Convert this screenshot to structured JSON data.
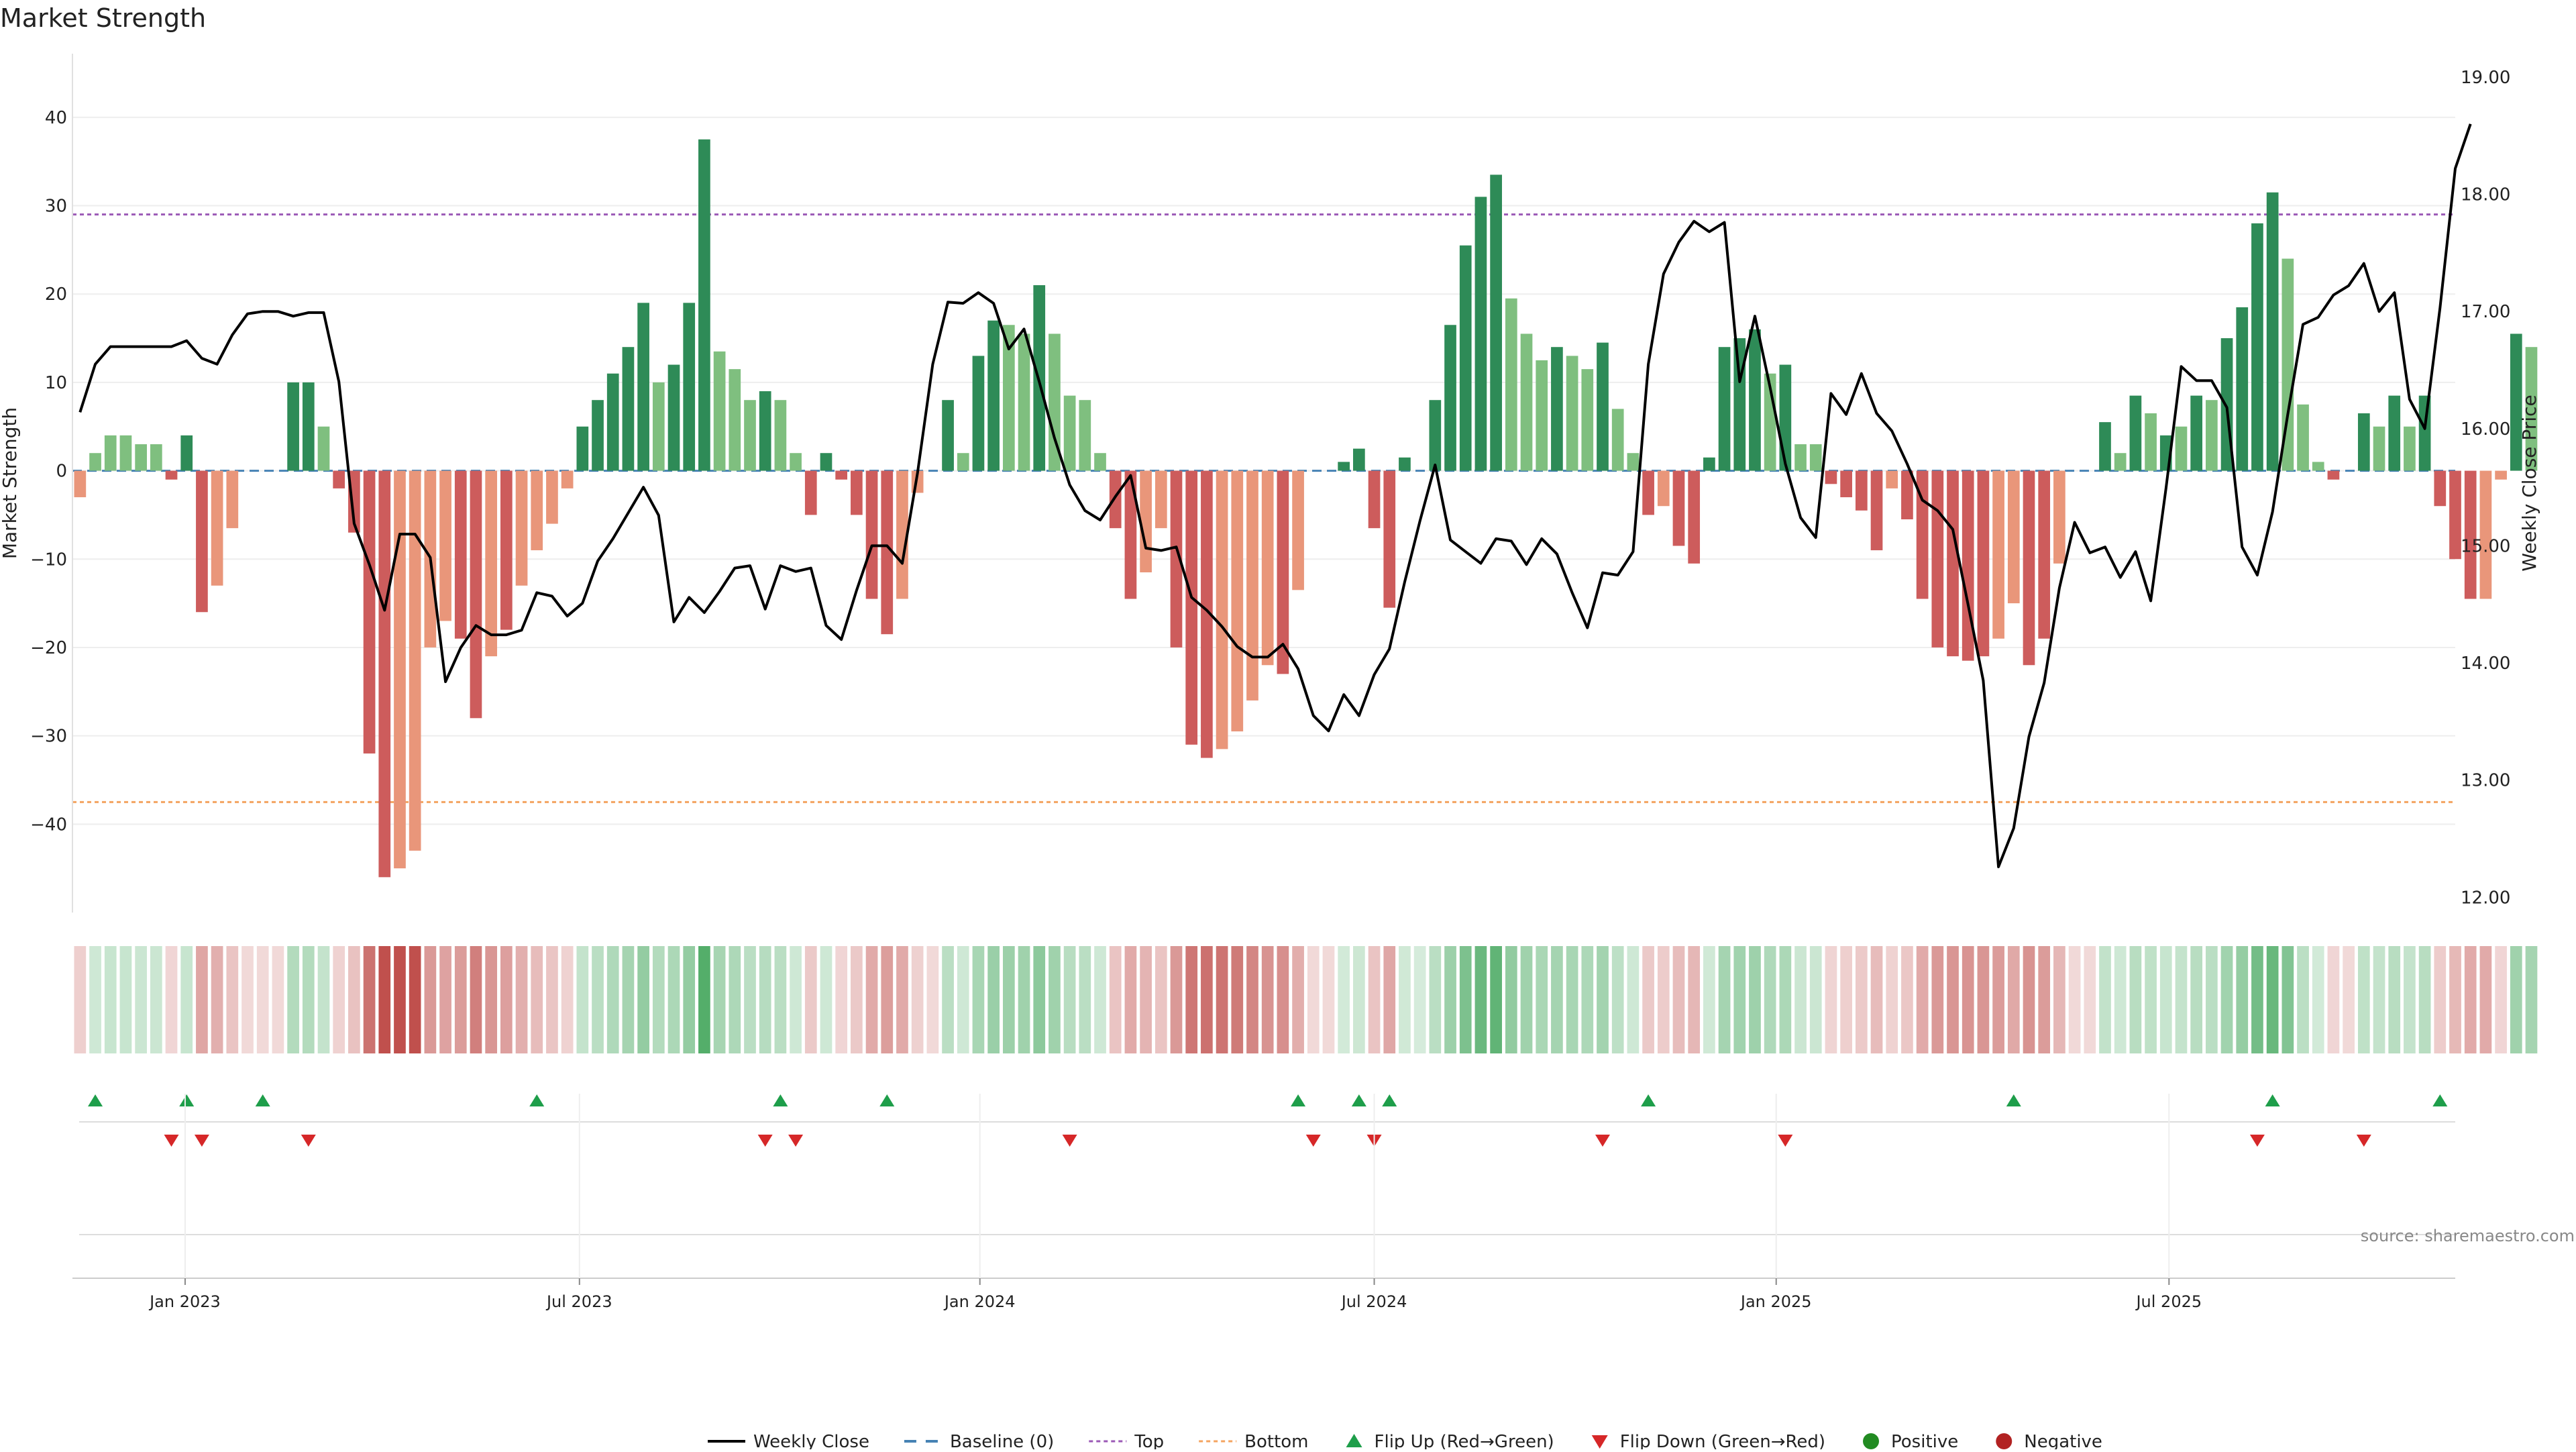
{
  "chart_data": {
    "type": "bar",
    "title": "Market Strength",
    "ylabel": "Market Strength",
    "y2label": "Weekly Close Price",
    "source": "source: sharemaestro.com",
    "ylim": [
      -50,
      47.2
    ],
    "y2lim": [
      11.87,
      19.2
    ],
    "yticks": [
      40,
      30,
      20,
      10,
      0,
      -10,
      -20,
      -30,
      -40
    ],
    "ytick_labels": [
      "40",
      "30",
      "20",
      "10",
      "0",
      "−10",
      "−20",
      "−30",
      "−40"
    ],
    "y2ticks": [
      19.0,
      18.0,
      17.0,
      16.0,
      15.0,
      14.0,
      13.0,
      12.0
    ],
    "y2tick_labels": [
      "19.00",
      "18.00",
      "17.00",
      "16.00",
      "15.00",
      "14.00",
      "13.00",
      "12.00"
    ],
    "x_range": [
      0,
      156.5
    ],
    "xticks": [
      {
        "idx": 7.4,
        "label": "Jan 2023"
      },
      {
        "idx": 33.3,
        "label": "Jul 2023"
      },
      {
        "idx": 59.6,
        "label": "Jan 2024"
      },
      {
        "idx": 85.5,
        "label": "Jul 2024"
      },
      {
        "idx": 111.9,
        "label": "Jan 2025"
      },
      {
        "idx": 137.7,
        "label": "Jul 2025"
      }
    ],
    "top_line": 29,
    "bottom_line": -37.5,
    "baseline": 0,
    "colors": {
      "strong_pos": "#2e8b57",
      "weak_pos": "#7fbf7f",
      "strong_neg": "#cd5c5c",
      "weak_neg": "#e9967a",
      "price": "#000000",
      "top": "#9b59b6",
      "bottom": "#f4a460",
      "baseline": "#4682b4",
      "flip_up": "#1e9e4a",
      "flip_down": "#d62728",
      "positive": "#228b22",
      "negative": "#b22222"
    },
    "strength": [
      -3,
      2,
      4,
      4,
      3,
      3,
      -1,
      4,
      -16,
      -13,
      -6.5,
      0,
      0,
      0,
      10,
      10,
      5,
      -2,
      -7,
      -32,
      -46,
      -45,
      -43,
      -20,
      -17,
      -19,
      -28,
      -21,
      -18,
      -13,
      -9,
      -6,
      -2,
      5,
      8,
      11,
      14,
      19,
      10,
      12,
      19,
      37.5,
      13.5,
      11.5,
      8,
      9,
      8,
      2,
      -5,
      2,
      -1,
      -5,
      -14.5,
      -18.5,
      -14.5,
      -2.5,
      0,
      8,
      2,
      13,
      17,
      16.5,
      15.5,
      21,
      15.5,
      8.5,
      8,
      2,
      -6.5,
      -14.5,
      -11.5,
      -6.5,
      -20,
      -31,
      -32.5,
      -31.5,
      -29.5,
      -26,
      -22,
      -23,
      -13.5,
      0,
      0,
      1,
      2.5,
      -6.5,
      -15.5,
      1.5,
      0,
      8,
      16.5,
      25.5,
      31,
      33.5,
      19.5,
      15.5,
      12.5,
      14,
      13,
      11.5,
      14.5,
      7,
      2,
      -5,
      -4,
      -8.5,
      -10.5,
      1.5,
      14,
      15,
      16,
      11,
      12,
      3,
      3,
      -1.5,
      -3,
      -4.5,
      -9,
      -2,
      -5.5,
      -14.5,
      -20,
      -21,
      -21.5,
      -21,
      -19,
      -15,
      -22,
      -19,
      -10.5,
      0,
      0,
      5.5,
      2,
      8.5,
      6.5,
      4,
      5,
      8.5,
      8,
      15,
      18.5,
      28,
      31.5,
      24,
      7.5,
      1,
      -1,
      0,
      6.5,
      5,
      8.5,
      5,
      8.5,
      -4,
      -10,
      -14.5,
      -14.5,
      -1,
      15.5,
      14
    ],
    "price": [
      16.14,
      16.55,
      16.7,
      16.7,
      16.7,
      16.7,
      16.7,
      16.75,
      16.6,
      16.55,
      16.8,
      16.98,
      17.0,
      17.0,
      16.96,
      16.99,
      16.99,
      16.4,
      15.19,
      14.84,
      14.45,
      15.1,
      15.1,
      14.9,
      13.84,
      14.13,
      14.32,
      14.24,
      14.24,
      14.28,
      14.6,
      14.57,
      14.4,
      14.51,
      14.87,
      15.06,
      15.28,
      15.5,
      15.26,
      14.35,
      14.56,
      14.43,
      14.61,
      14.81,
      14.83,
      14.46,
      14.83,
      14.78,
      14.81,
      14.32,
      14.2,
      14.62,
      15.0,
      15.0,
      14.85,
      15.62,
      16.55,
      17.08,
      17.07,
      17.16,
      17.07,
      16.68,
      16.85,
      16.4,
      15.92,
      15.52,
      15.3,
      15.22,
      15.42,
      15.6,
      14.98,
      14.96,
      14.99,
      14.56,
      14.45,
      14.31,
      14.14,
      14.05,
      14.05,
      14.16,
      13.95,
      13.55,
      13.42,
      13.73,
      13.55,
      13.9,
      14.12,
      14.69,
      15.21,
      15.69,
      15.05,
      14.95,
      14.85,
      15.06,
      15.04,
      14.84,
      15.06,
      14.93,
      14.6,
      14.3,
      14.77,
      14.75,
      14.95,
      16.55,
      17.32,
      17.59,
      17.77,
      17.68,
      17.76,
      16.4,
      16.96,
      16.35,
      15.7,
      15.24,
      15.07,
      16.3,
      16.12,
      16.47,
      16.13,
      15.98,
      15.7,
      15.39,
      15.3,
      15.14,
      14.5,
      13.85,
      12.26,
      12.59,
      13.37,
      13.83,
      14.64,
      15.2,
      14.94,
      14.99,
      14.73,
      14.95,
      14.53,
      15.49,
      16.53,
      16.41,
      16.41,
      16.18,
      14.99,
      14.75,
      15.29,
      16.12,
      16.89,
      16.95,
      17.14,
      17.22,
      17.41,
      17.0,
      17.16,
      16.25,
      16.0,
      17.03,
      18.22,
      18.6
    ],
    "bar_tones": [
      "wn",
      "wp",
      "wp",
      "wp",
      "wp",
      "wp",
      "sn",
      "sp",
      "sn",
      "wn",
      "wn",
      "wn",
      "wn",
      "wn",
      "sp",
      "sp",
      "wp",
      "sn",
      "sn",
      "sn",
      "sn",
      "wn",
      "wn",
      "wn",
      "wn",
      "sn",
      "sn",
      "wn",
      "sn",
      "wn",
      "wn",
      "wn",
      "wn",
      "sp",
      "sp",
      "sp",
      "sp",
      "sp",
      "wp",
      "sp",
      "sp",
      "sp",
      "wp",
      "wp",
      "wp",
      "sp",
      "wp",
      "wp",
      "sn",
      "sp",
      "sn",
      "sn",
      "sn",
      "sn",
      "wn",
      "wn",
      "wn",
      "sp",
      "wp",
      "sp",
      "sp",
      "wp",
      "wp",
      "sp",
      "wp",
      "wp",
      "wp",
      "wp",
      "sn",
      "sn",
      "wn",
      "wn",
      "sn",
      "sn",
      "sn",
      "wn",
      "wn",
      "wn",
      "wn",
      "sn",
      "wn",
      "wn",
      "wn",
      "sp",
      "sp",
      "sn",
      "sn",
      "sp",
      "wp",
      "sp",
      "sp",
      "sp",
      "sp",
      "sp",
      "wp",
      "wp",
      "wp",
      "sp",
      "wp",
      "wp",
      "sp",
      "wp",
      "wp",
      "sn",
      "wn",
      "sn",
      "sn",
      "sp",
      "sp",
      "sp",
      "sp",
      "wp",
      "sp",
      "wp",
      "wp",
      "sn",
      "sn",
      "sn",
      "sn",
      "wn",
      "sn",
      "sn",
      "sn",
      "sn",
      "sn",
      "sn",
      "wn",
      "wn",
      "sn",
      "sn",
      "wn",
      "wn",
      "wn",
      "sp",
      "wp",
      "sp",
      "wp",
      "sp",
      "wp",
      "sp",
      "wp",
      "sp",
      "sp",
      "sp",
      "sp",
      "wp",
      "wp",
      "wp",
      "sn",
      "wn",
      "sp",
      "wp",
      "sp",
      "wp",
      "sp",
      "sn",
      "sn",
      "sn",
      "wn",
      "wn",
      "sp",
      "wp"
    ],
    "flip_up_idx": [
      1,
      7,
      12,
      30,
      46,
      53,
      80,
      84,
      86,
      103,
      127,
      144,
      155
    ],
    "flip_down_idx": [
      6,
      8,
      15,
      45,
      47,
      65,
      81,
      85,
      100,
      112,
      143,
      150
    ],
    "legend": [
      {
        "key": "price",
        "label": "Weekly Close"
      },
      {
        "key": "baseline",
        "label": "Baseline (0)"
      },
      {
        "key": "top",
        "label": "Top"
      },
      {
        "key": "bottom",
        "label": "Bottom"
      },
      {
        "key": "flip_up",
        "label": "Flip Up (Red→Green)"
      },
      {
        "key": "flip_down",
        "label": "Flip Down (Green→Red)"
      },
      {
        "key": "positive",
        "label": "Positive"
      },
      {
        "key": "negative",
        "label": "Negative"
      }
    ]
  }
}
